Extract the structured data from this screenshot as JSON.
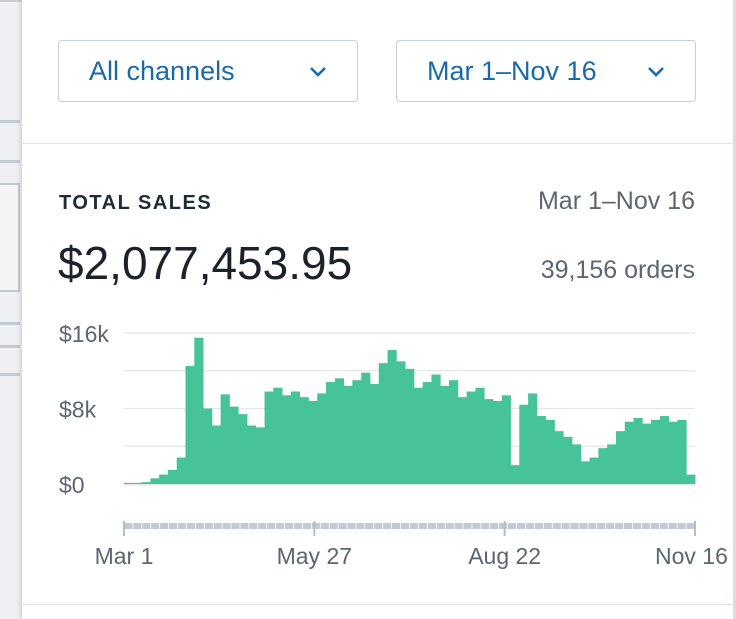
{
  "filters": {
    "channel": "All channels",
    "date_range": "Mar 1–Nov 16"
  },
  "card": {
    "title": "TOTAL SALES",
    "date_range": "Mar 1–Nov 16",
    "total": "$2,077,453.95",
    "orders": "39,156 orders"
  },
  "colors": {
    "accent": "#1b6aa8",
    "bar": "#47c39a",
    "grid": "#e3e6ea"
  },
  "chart_data": {
    "type": "bar",
    "title": "",
    "xlabel": "",
    "ylabel": "",
    "ylim": [
      0,
      16000
    ],
    "grid": true,
    "y_ticks": [
      {
        "value": 0,
        "label": "$0"
      },
      {
        "value": 8000,
        "label": "$8k"
      },
      {
        "value": 16000,
        "label": "$16k"
      }
    ],
    "x_ticks": [
      "Mar 1",
      "May 27",
      "Aug 22",
      "Nov 16"
    ],
    "x": [
      "Mar 1",
      "Mar 5",
      "Mar 9",
      "Mar 13",
      "Mar 17",
      "Mar 21",
      "Mar 25",
      "Mar 29",
      "Apr 2",
      "Apr 6",
      "Apr 10",
      "Apr 14",
      "Apr 18",
      "Apr 22",
      "Apr 26",
      "Apr 30",
      "May 4",
      "May 8",
      "May 12",
      "May 16",
      "May 20",
      "May 24",
      "May 28",
      "Jun 1",
      "Jun 5",
      "Jun 9",
      "Jun 13",
      "Jun 17",
      "Jun 21",
      "Jun 25",
      "Jun 29",
      "Jul 3",
      "Jul 7",
      "Jul 11",
      "Jul 15",
      "Jul 19",
      "Jul 23",
      "Jul 27",
      "Jul 31",
      "Aug 4",
      "Aug 8",
      "Aug 12",
      "Aug 16",
      "Aug 20",
      "Aug 24",
      "Aug 28",
      "Sep 1",
      "Sep 5",
      "Sep 9",
      "Sep 13",
      "Sep 17",
      "Sep 21",
      "Sep 25",
      "Sep 29",
      "Oct 3",
      "Oct 7",
      "Oct 11",
      "Oct 15",
      "Oct 19",
      "Oct 23",
      "Oct 27",
      "Oct 31",
      "Nov 4",
      "Nov 8",
      "Nov 12"
    ],
    "values": [
      100,
      100,
      200,
      600,
      1000,
      1500,
      2800,
      12500,
      15500,
      8000,
      6200,
      9500,
      8200,
      7400,
      6200,
      6000,
      9800,
      10200,
      9400,
      9800,
      9200,
      8800,
      9600,
      10800,
      11200,
      10400,
      11000,
      11800,
      10600,
      12800,
      14200,
      13000,
      12200,
      10200,
      10800,
      11600,
      10400,
      11000,
      9200,
      9800,
      10200,
      9000,
      8800,
      9400,
      2000,
      8400,
      9600,
      7200,
      6800,
      5600,
      5000,
      4200,
      2400,
      2800,
      3800,
      4200,
      5600,
      6600,
      7000,
      6400,
      6800,
      7200,
      6600,
      6800,
      1000
    ]
  }
}
